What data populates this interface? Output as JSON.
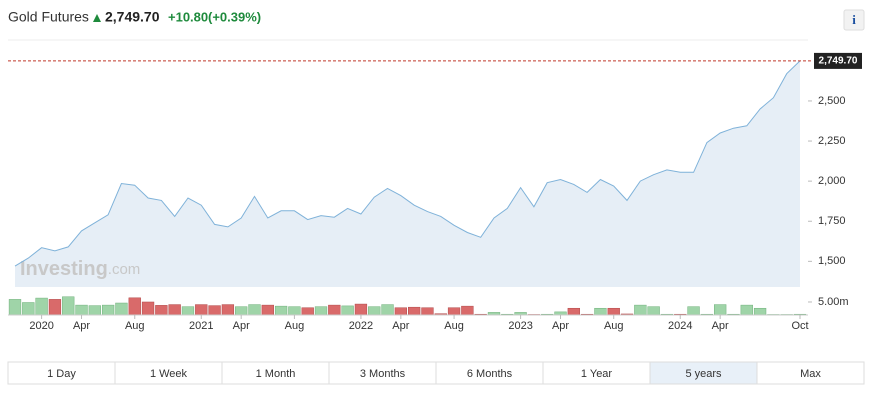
{
  "header": {
    "title": "Gold Futures",
    "price": "2,749.70",
    "change": "+10.80",
    "change_pct": "(+0.39%)",
    "info": "i"
  },
  "chart_data": {
    "type": "area",
    "watermark": "Investing",
    "watermark_suffix": ".com",
    "x": [
      "2019-11",
      "2019-12",
      "2020-01",
      "2020-02",
      "2020-03",
      "2020-04",
      "2020-05",
      "2020-06",
      "2020-07",
      "2020-08",
      "2020-09",
      "2020-10",
      "2020-11",
      "2020-12",
      "2021-01",
      "2021-02",
      "2021-03",
      "2021-04",
      "2021-05",
      "2021-06",
      "2021-07",
      "2021-08",
      "2021-09",
      "2021-10",
      "2021-11",
      "2021-12",
      "2022-01",
      "2022-02",
      "2022-03",
      "2022-04",
      "2022-05",
      "2022-06",
      "2022-07",
      "2022-08",
      "2022-09",
      "2022-10",
      "2022-11",
      "2022-12",
      "2023-01",
      "2023-02",
      "2023-03",
      "2023-04",
      "2023-05",
      "2023-06",
      "2023-07",
      "2023-08",
      "2023-09",
      "2023-10",
      "2023-11",
      "2023-12",
      "2024-01",
      "2024-02",
      "2024-03",
      "2024-04",
      "2024-05",
      "2024-06",
      "2024-07",
      "2024-08",
      "2024-09",
      "2024-10"
    ],
    "series": [
      {
        "name": "Price",
        "color": "#7fb2d9",
        "fill": "#e6eef6",
        "values": [
          1470,
          1520,
          1585,
          1565,
          1590,
          1690,
          1740,
          1790,
          1985,
          1975,
          1895,
          1880,
          1780,
          1895,
          1850,
          1730,
          1715,
          1770,
          1905,
          1770,
          1815,
          1815,
          1760,
          1785,
          1775,
          1830,
          1795,
          1900,
          1955,
          1910,
          1850,
          1810,
          1780,
          1725,
          1680,
          1650,
          1770,
          1830,
          1960,
          1840,
          1990,
          2010,
          1980,
          1930,
          2010,
          1970,
          1880,
          2000,
          2040,
          2070,
          2055,
          2055,
          2240,
          2300,
          2330,
          2345,
          2450,
          2520,
          2670,
          2749.7
        ]
      },
      {
        "name": "Volume",
        "axis": "y2",
        "up_color": "#9fd4a8",
        "down_color": "#d96a6a",
        "values": [
          6.0,
          4.8,
          6.5,
          6.0,
          7.0,
          3.8,
          3.6,
          3.8,
          4.6,
          6.6,
          5.0,
          3.7,
          4.0,
          3.2,
          4.0,
          3.6,
          4.0,
          3.2,
          4.0,
          3.8,
          3.4,
          3.2,
          2.8,
          3.2,
          3.8,
          3.5,
          4.2,
          3.2,
          4.0,
          2.8,
          3.0,
          2.8,
          0.5,
          2.8,
          3.4,
          0.3,
          1.0,
          0.3,
          1.0,
          0.2,
          0.3,
          1.2,
          2.6,
          0.3,
          2.6,
          2.6,
          0.4,
          3.8,
          3.2,
          0.3,
          0.3,
          3.2,
          0.3,
          4.0,
          0.3,
          3.8,
          2.6,
          0.2,
          0.2,
          0.3
        ]
      }
    ],
    "ylim": [
      1340,
      2880
    ],
    "yticks": [
      {
        "value": 1500,
        "label": "1,500"
      },
      {
        "value": 1750,
        "label": "1,750"
      },
      {
        "value": 2000,
        "label": "2,000"
      },
      {
        "value": 2250,
        "label": "2,250"
      },
      {
        "value": 2500,
        "label": "2,500"
      }
    ],
    "y2lim": [
      0,
      9.6
    ],
    "y2ticks": [
      {
        "value": 5,
        "label": "5.00m"
      }
    ],
    "xticks": [
      {
        "value": "2020-01",
        "label": "2020"
      },
      {
        "value": "2020-04",
        "label": "Apr"
      },
      {
        "value": "2020-08",
        "label": "Aug"
      },
      {
        "value": "2021-01",
        "label": "2021"
      },
      {
        "value": "2021-04",
        "label": "Apr"
      },
      {
        "value": "2021-08",
        "label": "Aug"
      },
      {
        "value": "2022-01",
        "label": "2022"
      },
      {
        "value": "2022-04",
        "label": "Apr"
      },
      {
        "value": "2022-08",
        "label": "Aug"
      },
      {
        "value": "2023-01",
        "label": "2023"
      },
      {
        "value": "2023-04",
        "label": "Apr"
      },
      {
        "value": "2023-08",
        "label": "Aug"
      },
      {
        "value": "2024-01",
        "label": "2024"
      },
      {
        "value": "2024-04",
        "label": "Apr"
      },
      {
        "value": "2024-10",
        "label": "Oct"
      }
    ],
    "last_line_color": "#c0392b",
    "ranges": [
      "1 Day",
      "1 Week",
      "1 Month",
      "3 Months",
      "6 Months",
      "1 Year",
      "5 years",
      "Max"
    ],
    "selected_range": "5 years"
  }
}
